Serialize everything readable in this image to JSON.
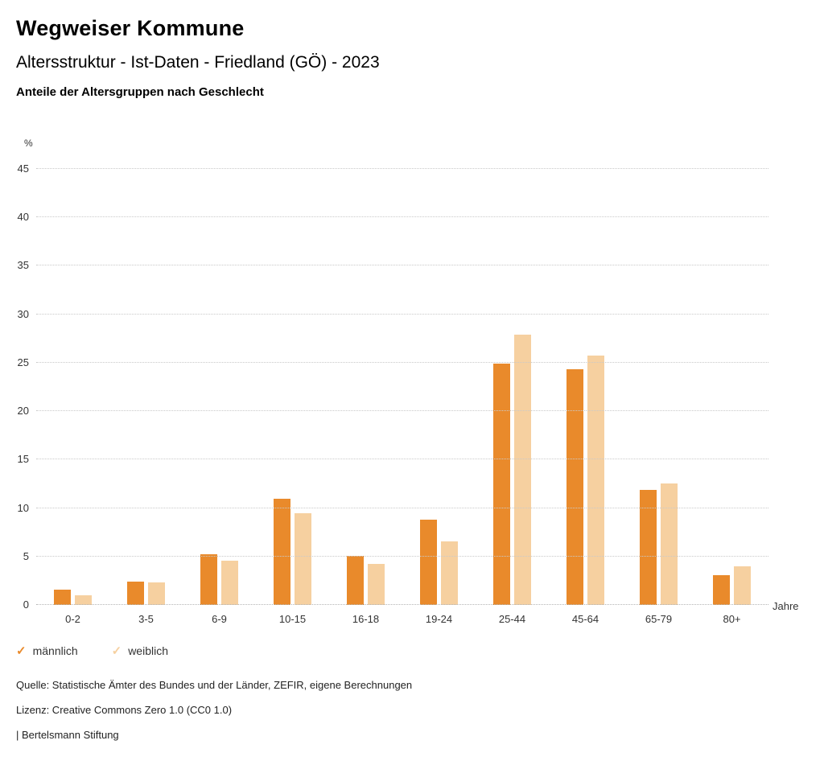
{
  "header": {
    "title": "Wegweiser Kommune",
    "subtitle": "Altersstruktur - Ist-Daten - Friedland (GÖ) - 2023"
  },
  "chart_data": {
    "type": "bar",
    "title": "Anteile der Altersgruppen nach Geschlecht",
    "categories": [
      "0-2",
      "3-5",
      "6-9",
      "10-15",
      "16-18",
      "19-24",
      "25-44",
      "45-64",
      "65-79",
      "80+"
    ],
    "series": [
      {
        "name": "männlich",
        "color": "#E98A2B",
        "values": [
          1.6,
          2.4,
          5.2,
          11.0,
          5.1,
          8.8,
          24.9,
          24.3,
          11.9,
          3.1
        ]
      },
      {
        "name": "weiblich",
        "color": "#F6D0A0",
        "values": [
          1.0,
          2.3,
          4.6,
          9.5,
          4.2,
          6.6,
          27.9,
          25.7,
          12.5,
          4.0
        ]
      }
    ],
    "ylabel_unit": "%",
    "xlabel_unit": "Jahre",
    "ylim": [
      0,
      45
    ],
    "ytick_step": 5,
    "grid": true,
    "legend_position": "bottom-left"
  },
  "legend": {
    "items": [
      {
        "label": "männlich",
        "color": "#E98A2B",
        "symbol": "check"
      },
      {
        "label": "weiblich",
        "color": "#F6D0A0",
        "symbol": "check"
      }
    ]
  },
  "footer": {
    "source": "Quelle: Statistische Ämter des Bundes und der Länder, ZEFIR, eigene Berechnungen",
    "license": "Lizenz: Creative Commons Zero 1.0 (CC0 1.0)",
    "brand": "| Bertelsmann Stiftung"
  }
}
